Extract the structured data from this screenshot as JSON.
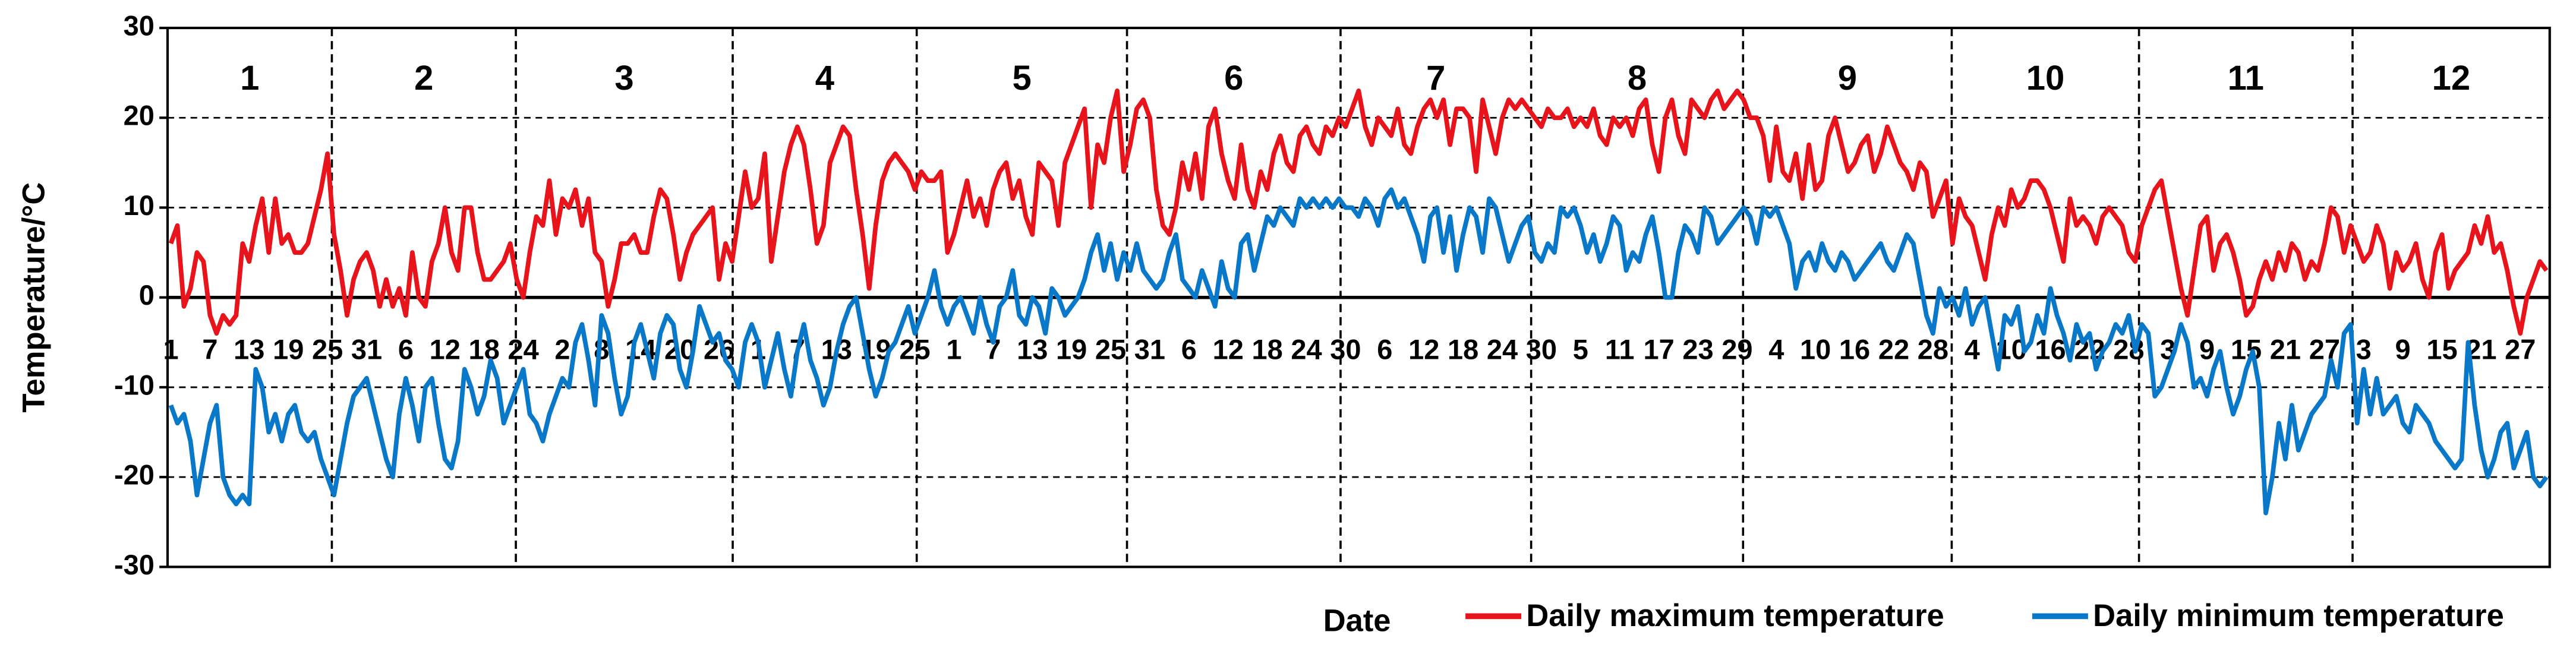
{
  "chart_data": {
    "type": "line",
    "x_label": "Date",
    "y_label": "Temperature/°C",
    "months": [
      "1",
      "2",
      "3",
      "4",
      "5",
      "6",
      "7",
      "8",
      "9",
      "10",
      "11",
      "12"
    ],
    "ylim": [
      -30,
      30
    ],
    "yticks": [
      -30,
      -20,
      -10,
      0,
      10,
      20,
      30
    ],
    "grid": true,
    "legend": "bottom-right",
    "categories": [
      1,
      null,
      null,
      null,
      null,
      null,
      7,
      null,
      null,
      null,
      null,
      null,
      13,
      null,
      null,
      null,
      null,
      null,
      19,
      null,
      null,
      null,
      null,
      null,
      25,
      null,
      null,
      null,
      null,
      null,
      31,
      null,
      null,
      null,
      null,
      null,
      6,
      null,
      null,
      null,
      null,
      null,
      12,
      null,
      null,
      null,
      null,
      null,
      18,
      null,
      null,
      null,
      null,
      null,
      24,
      null,
      null,
      null,
      null,
      null,
      2,
      null,
      null,
      null,
      null,
      null,
      8,
      null,
      null,
      null,
      null,
      null,
      14,
      null,
      null,
      null,
      null,
      null,
      20,
      null,
      null,
      null,
      null,
      null,
      26,
      null,
      null,
      null,
      null,
      null,
      1,
      null,
      null,
      null,
      null,
      null,
      7,
      null,
      null,
      null,
      null,
      null,
      13,
      null,
      null,
      null,
      null,
      null,
      19,
      null,
      null,
      null,
      null,
      null,
      25,
      null,
      null,
      null,
      null,
      null,
      1,
      null,
      null,
      null,
      null,
      null,
      7,
      null,
      null,
      null,
      null,
      null,
      13,
      null,
      null,
      null,
      null,
      null,
      19,
      null,
      null,
      null,
      null,
      null,
      25,
      null,
      null,
      null,
      null,
      null,
      31,
      null,
      null,
      null,
      null,
      null,
      6,
      null,
      null,
      null,
      null,
      null,
      12,
      null,
      null,
      null,
      null,
      null,
      18,
      null,
      null,
      null,
      null,
      null,
      24,
      null,
      null,
      null,
      null,
      null,
      30,
      null,
      null,
      null,
      null,
      null,
      6,
      null,
      null,
      null,
      null,
      null,
      12,
      null,
      null,
      null,
      null,
      null,
      18,
      null,
      null,
      null,
      null,
      null,
      24,
      null,
      null,
      null,
      null,
      null,
      30,
      null,
      null,
      null,
      null,
      null,
      5,
      null,
      null,
      null,
      null,
      null,
      11,
      null,
      null,
      null,
      null,
      null,
      17,
      null,
      null,
      null,
      null,
      null,
      23,
      null,
      null,
      null,
      null,
      null,
      29,
      null,
      null,
      null,
      null,
      null,
      4,
      null,
      null,
      null,
      null,
      null,
      10,
      null,
      null,
      null,
      null,
      null,
      16,
      null,
      null,
      null,
      null,
      null,
      22,
      null,
      null,
      null,
      null,
      null,
      28,
      null,
      null,
      null,
      null,
      null,
      4,
      null,
      null,
      null,
      null,
      null,
      10,
      null,
      null,
      null,
      null,
      null,
      16,
      null,
      null,
      null,
      null,
      null,
      22,
      null,
      null,
      null,
      null,
      null,
      28,
      null,
      null,
      null,
      null,
      null,
      3,
      null,
      null,
      null,
      null,
      null,
      9,
      null,
      null,
      null,
      null,
      null,
      15,
      null,
      null,
      null,
      null,
      null,
      21,
      null,
      null,
      null,
      null,
      null,
      27,
      null,
      null,
      null,
      null,
      null,
      3,
      null,
      null,
      null,
      null,
      null,
      9,
      null,
      null,
      null,
      null,
      null,
      15,
      null,
      null,
      null,
      null,
      null,
      21,
      null,
      null,
      null,
      null,
      null,
      27,
      null,
      null,
      null,
      null
    ],
    "series": [
      {
        "name": "Daily maximum temperature",
        "color": "#e8141b",
        "values": [
          6,
          8,
          -1,
          1,
          5,
          4,
          -2,
          -4,
          -2,
          -3,
          -2,
          6,
          4,
          8,
          11,
          5,
          11,
          6,
          7,
          5,
          5,
          6,
          9,
          12,
          16,
          7,
          3,
          -2,
          2,
          4,
          5,
          3,
          -1,
          2,
          -1,
          1,
          -2,
          5,
          0,
          -1,
          4,
          6,
          10,
          5,
          3,
          10,
          10,
          5,
          2,
          2,
          3,
          4,
          6,
          2,
          0,
          5,
          9,
          8,
          13,
          7,
          11,
          10,
          12,
          8,
          11,
          5,
          4,
          -1,
          2,
          6,
          6,
          7,
          5,
          5,
          9,
          12,
          11,
          7,
          2,
          5,
          7,
          8,
          9,
          10,
          2,
          6,
          4,
          9,
          14,
          10,
          11,
          16,
          4,
          9,
          14,
          17,
          19,
          17,
          12,
          6,
          8,
          15,
          17,
          19,
          18,
          12,
          7,
          1,
          8,
          13,
          15,
          16,
          15,
          14,
          12,
          14,
          13,
          13,
          14,
          5,
          7,
          10,
          13,
          9,
          11,
          8,
          12,
          14,
          15,
          11,
          13,
          9,
          7,
          15,
          14,
          13,
          8,
          15,
          17,
          19,
          21,
          10,
          17,
          15,
          20,
          23,
          14,
          17,
          21,
          22,
          20,
          12,
          8,
          7,
          10,
          15,
          12,
          16,
          11,
          19,
          21,
          16,
          13,
          11,
          17,
          12,
          10,
          14,
          12,
          16,
          18,
          15,
          14,
          18,
          19,
          17,
          16,
          19,
          18,
          20,
          19,
          21,
          23,
          19,
          17,
          20,
          19,
          18,
          21,
          17,
          16,
          19,
          21,
          22,
          20,
          22,
          17,
          21,
          21,
          20,
          14,
          22,
          19,
          16,
          20,
          22,
          21,
          22,
          21,
          20,
          19,
          21,
          20,
          20,
          21,
          19,
          20,
          19,
          21,
          18,
          17,
          20,
          19,
          20,
          18,
          21,
          22,
          17,
          14,
          20,
          22,
          18,
          16,
          22,
          21,
          20,
          22,
          23,
          21,
          22,
          23,
          22,
          20,
          20,
          18,
          13,
          19,
          14,
          13,
          16,
          11,
          17,
          12,
          13,
          18,
          20,
          17,
          14,
          15,
          17,
          18,
          14,
          16,
          19,
          17,
          15,
          14,
          12,
          15,
          14,
          9,
          11,
          13,
          6,
          11,
          9,
          8,
          5,
          2,
          7,
          10,
          8,
          12,
          10,
          11,
          13,
          13,
          12,
          10,
          7,
          4,
          11,
          8,
          9,
          8,
          6,
          9,
          10,
          9,
          8,
          5,
          4,
          8,
          10,
          12,
          13,
          9,
          5,
          1,
          -2,
          3,
          8,
          9,
          3,
          6,
          7,
          5,
          2,
          -2,
          -1,
          2,
          4,
          2,
          5,
          3,
          6,
          5,
          2,
          4,
          3,
          6,
          10,
          9,
          5,
          8,
          6,
          4,
          5,
          8,
          6,
          1,
          5,
          3,
          4,
          6,
          2,
          0,
          5,
          7,
          1,
          3,
          4,
          5,
          8,
          6,
          9,
          5,
          6,
          3,
          -1,
          -4,
          0,
          2,
          4,
          3
        ]
      },
      {
        "name": "Daily minimum temperature",
        "color": "#0a78c8",
        "values": [
          -12,
          -14,
          -13,
          -16,
          -22,
          -18,
          -14,
          -12,
          -20,
          -22,
          -23,
          -22,
          -23,
          -8,
          -10,
          -15,
          -13,
          -16,
          -13,
          -12,
          -15,
          -16,
          -15,
          -18,
          -20,
          -22,
          -18,
          -14,
          -11,
          -10,
          -9,
          -12,
          -15,
          -18,
          -20,
          -13,
          -9,
          -12,
          -16,
          -10,
          -9,
          -14,
          -18,
          -19,
          -16,
          -8,
          -10,
          -13,
          -11,
          -7,
          -9,
          -14,
          -12,
          -10,
          -8,
          -13,
          -14,
          -16,
          -13,
          -11,
          -9,
          -10,
          -5,
          -3,
          -7,
          -12,
          -2,
          -4,
          -9,
          -13,
          -11,
          -5,
          -3,
          -6,
          -9,
          -4,
          -2,
          -3,
          -8,
          -10,
          -6,
          -1,
          -3,
          -5,
          -4,
          -7,
          -8,
          -10,
          -5,
          -3,
          -5,
          -10,
          -7,
          -4,
          -8,
          -11,
          -6,
          -3,
          -7,
          -9,
          -12,
          -10,
          -6,
          -3,
          -1,
          0,
          -4,
          -8,
          -11,
          -9,
          -6,
          -5,
          -3,
          -1,
          -4,
          -2,
          0,
          3,
          -1,
          -3,
          -1,
          0,
          -2,
          -4,
          0,
          -3,
          -5,
          -1,
          0,
          3,
          -2,
          -3,
          0,
          -1,
          -4,
          1,
          0,
          -2,
          -1,
          0,
          2,
          5,
          7,
          3,
          6,
          2,
          5,
          3,
          6,
          3,
          2,
          1,
          2,
          5,
          7,
          2,
          1,
          0,
          3,
          1,
          -1,
          4,
          1,
          0,
          6,
          7,
          3,
          6,
          9,
          8,
          10,
          9,
          8,
          11,
          10,
          11,
          10,
          11,
          10,
          11,
          10,
          10,
          9,
          11,
          10,
          8,
          11,
          12,
          10,
          11,
          9,
          7,
          4,
          9,
          10,
          5,
          9,
          3,
          7,
          10,
          9,
          5,
          11,
          10,
          7,
          4,
          6,
          8,
          9,
          5,
          4,
          6,
          5,
          10,
          9,
          10,
          8,
          5,
          7,
          4,
          6,
          9,
          8,
          3,
          5,
          4,
          7,
          9,
          5,
          0,
          0,
          5,
          8,
          7,
          5,
          10,
          9,
          6,
          7,
          8,
          9,
          10,
          9,
          6,
          10,
          9,
          10,
          8,
          6,
          1,
          4,
          5,
          3,
          6,
          4,
          3,
          5,
          4,
          2,
          3,
          4,
          5,
          6,
          4,
          3,
          5,
          7,
          6,
          2,
          -2,
          -4,
          1,
          -1,
          0,
          -2,
          1,
          -3,
          -1,
          0,
          -4,
          -8,
          -2,
          -3,
          -1,
          -6,
          -5,
          -2,
          -4,
          1,
          -2,
          -4,
          -7,
          -3,
          -5,
          -4,
          -8,
          -6,
          -5,
          -3,
          -4,
          -2,
          -6,
          -3,
          -4,
          -11,
          -10,
          -8,
          -6,
          -3,
          -5,
          -10,
          -9,
          -11,
          -8,
          -6,
          -10,
          -13,
          -11,
          -8,
          -6,
          -10,
          -24,
          -20,
          -14,
          -18,
          -12,
          -17,
          -15,
          -13,
          -12,
          -11,
          -7,
          -10,
          -4,
          -3,
          -14,
          -8,
          -13,
          -9,
          -13,
          -12,
          -11,
          -14,
          -15,
          -12,
          -13,
          -14,
          -16,
          -17,
          -18,
          -19,
          -18,
          -5,
          -12,
          -17,
          -20,
          -18,
          -15,
          -14,
          -19,
          -17,
          -15,
          -20,
          -21,
          -20
        ]
      }
    ]
  }
}
